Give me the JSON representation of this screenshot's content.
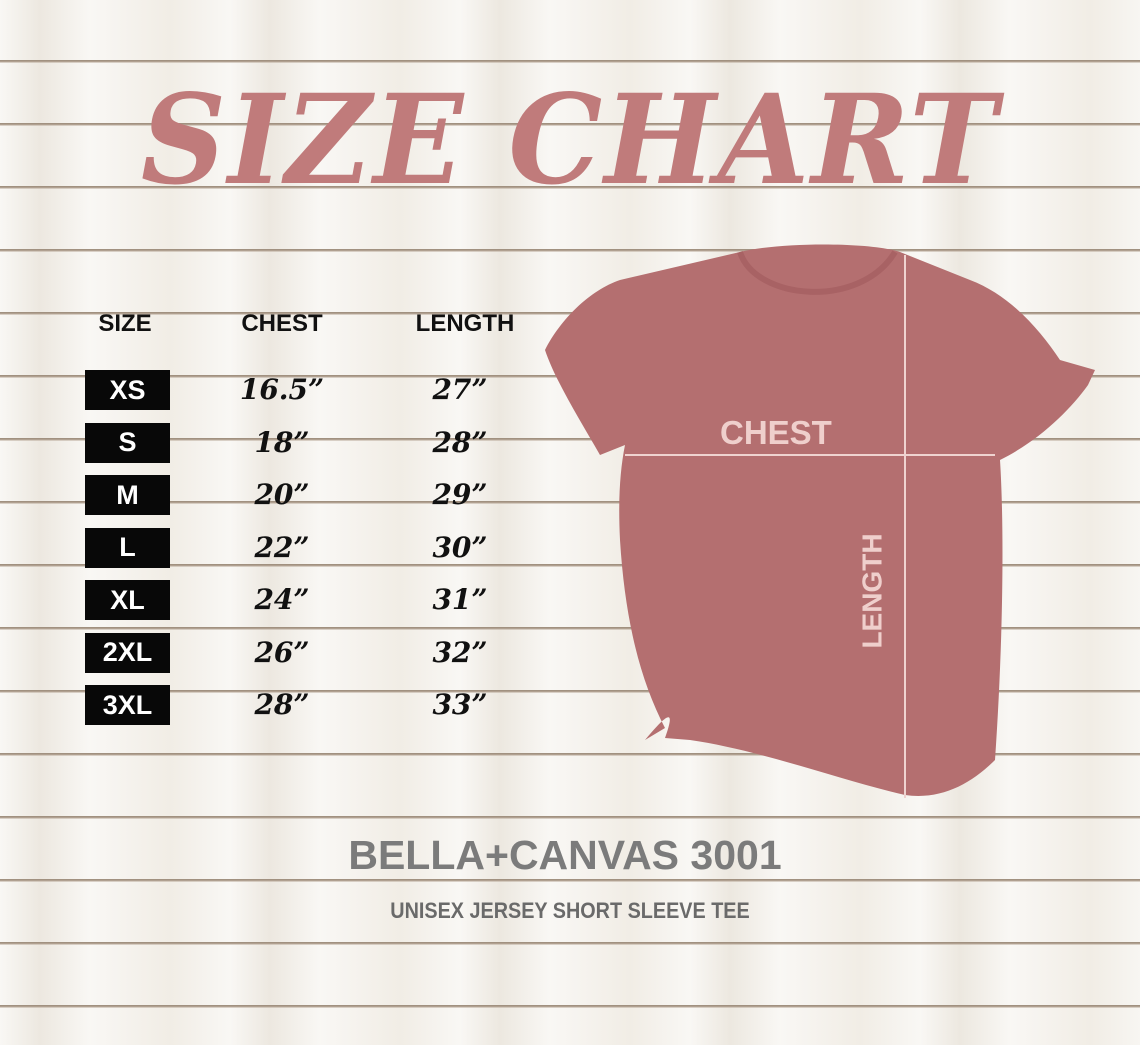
{
  "title": "SIZE CHART",
  "table": {
    "headers": [
      "SIZE",
      "CHEST",
      "LENGTH"
    ],
    "rows": [
      {
        "size": "XS",
        "chest": "16.5”",
        "length": "27”"
      },
      {
        "size": "S",
        "chest": "18”",
        "length": "28”"
      },
      {
        "size": "M",
        "chest": "20”",
        "length": "29”"
      },
      {
        "size": "L",
        "chest": "22”",
        "length": "30”"
      },
      {
        "size": "XL",
        "chest": "24”",
        "length": "31”"
      },
      {
        "size": "2XL",
        "chest": "26”",
        "length": "32”"
      },
      {
        "size": "3XL",
        "chest": "28”",
        "length": "33”"
      }
    ]
  },
  "shirt": {
    "chest_label": "CHEST",
    "length_label": "LENGTH",
    "color": "#b46f70"
  },
  "brand": {
    "name": "BELLA+CANVAS 3001",
    "description": "UNISEX JERSEY SHORT SLEEVE TEE"
  },
  "colors": {
    "title": "#c07b7b",
    "size_box": "#080808",
    "brand_text": "#7b7b7b"
  }
}
